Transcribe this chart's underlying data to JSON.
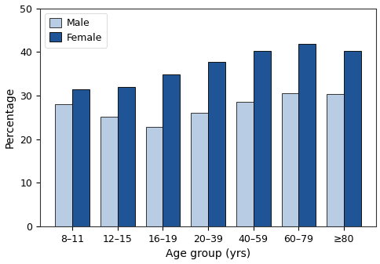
{
  "age_groups": [
    "8–11",
    "12–15",
    "16–19",
    "20–39",
    "40–59",
    "60–79",
    "≥80"
  ],
  "male_values": [
    28.0,
    25.2,
    22.9,
    26.1,
    28.5,
    30.5,
    30.4
  ],
  "female_values": [
    31.5,
    32.0,
    34.9,
    37.8,
    40.2,
    41.8,
    40.3
  ],
  "male_color": "#b8cce4",
  "female_color": "#1f5496",
  "male_edge_color": "#333333",
  "female_edge_color": "#111111",
  "ylim": [
    0,
    50
  ],
  "yticks": [
    0,
    10,
    20,
    30,
    40,
    50
  ],
  "ylabel": "Percentage",
  "xlabel": "Age group (yrs)",
  "legend_labels": [
    "Male",
    "Female"
  ],
  "bar_width": 0.38,
  "background_color": "#ffffff",
  "tick_fontsize": 9,
  "label_fontsize": 10
}
